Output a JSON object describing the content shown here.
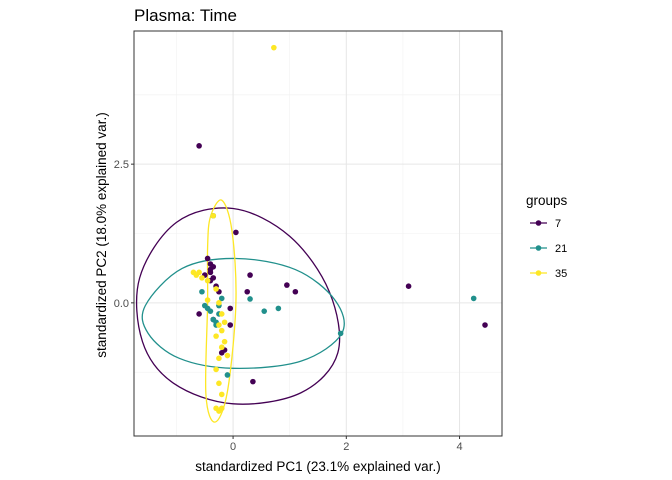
{
  "chart_data": {
    "type": "scatter",
    "title": "Plasma: Time",
    "xlabel": "standardized PC1 (23.1% explained var.)",
    "ylabel": "standardized PC2 (18.0% explained var.)",
    "xlim": [
      -1.75,
      4.75
    ],
    "ylim": [
      -2.4,
      4.9
    ],
    "x_ticks": [
      0,
      2,
      4
    ],
    "x_tick_labels": [
      "0",
      "2",
      "4"
    ],
    "y_ticks": [
      0,
      2.5
    ],
    "y_tick_labels": [
      "0.0",
      "2.5"
    ],
    "grid": true,
    "legend": {
      "title": "groups",
      "position": "right",
      "entries": [
        "7",
        "21",
        "35"
      ]
    },
    "series": [
      {
        "name": "7",
        "color": "#440154",
        "points": [
          [
            -0.6,
            2.83
          ],
          [
            0.05,
            1.27
          ],
          [
            -0.45,
            0.8
          ],
          [
            -0.4,
            0.7
          ],
          [
            -0.35,
            0.65
          ],
          [
            -0.4,
            0.6
          ],
          [
            -0.4,
            0.55
          ],
          [
            -0.5,
            0.5
          ],
          [
            -0.35,
            0.45
          ],
          [
            -0.4,
            0.4
          ],
          [
            -0.25,
            0.2
          ],
          [
            -0.3,
            0.3
          ],
          [
            0.3,
            0.5
          ],
          [
            0.25,
            0.2
          ],
          [
            0.95,
            0.32
          ],
          [
            1.1,
            0.2
          ],
          [
            -0.6,
            -0.2
          ],
          [
            -0.35,
            -0.3
          ],
          [
            -0.05,
            -0.4
          ],
          [
            -0.15,
            -0.85
          ],
          [
            -0.2,
            -0.9
          ],
          [
            0.35,
            -1.42
          ],
          [
            3.1,
            0.3
          ],
          [
            4.45,
            -0.4
          ],
          [
            -0.05,
            -0.1
          ]
        ]
      },
      {
        "name": "21",
        "color": "#21908c",
        "points": [
          [
            -0.35,
            1.57
          ],
          [
            -0.55,
            0.2
          ],
          [
            -0.5,
            -0.05
          ],
          [
            -0.45,
            -0.1
          ],
          [
            -0.4,
            -0.15
          ],
          [
            -0.35,
            -0.3
          ],
          [
            -0.3,
            -0.4
          ],
          [
            -0.25,
            -0.05
          ],
          [
            -0.2,
            0.08
          ],
          [
            0.3,
            0.07
          ],
          [
            0.55,
            -0.15
          ],
          [
            0.8,
            -0.1
          ],
          [
            1.9,
            -0.55
          ],
          [
            4.25,
            0.08
          ],
          [
            -0.1,
            -1.3
          ],
          [
            -0.25,
            -0.2
          ],
          [
            -0.3,
            -0.35
          ]
        ]
      },
      {
        "name": "35",
        "color": "#fde725",
        "points": [
          [
            0.72,
            4.6
          ],
          [
            -0.35,
            1.57
          ],
          [
            -0.7,
            0.55
          ],
          [
            -0.65,
            0.5
          ],
          [
            -0.6,
            0.55
          ],
          [
            -0.55,
            0.45
          ],
          [
            -0.45,
            0.4
          ],
          [
            -0.3,
            0.25
          ],
          [
            -0.25,
            0.0
          ],
          [
            -0.2,
            -0.2
          ],
          [
            -0.25,
            -0.4
          ],
          [
            -0.2,
            -0.5
          ],
          [
            -0.3,
            -0.6
          ],
          [
            -0.15,
            -0.7
          ],
          [
            -0.2,
            -0.8
          ],
          [
            -0.25,
            -1.0
          ],
          [
            -0.3,
            -1.2
          ],
          [
            -0.25,
            -1.45
          ],
          [
            -0.2,
            -1.65
          ],
          [
            -0.3,
            -1.9
          ],
          [
            -0.2,
            -1.9
          ],
          [
            -0.25,
            -1.95
          ],
          [
            -0.15,
            -0.35
          ],
          [
            -0.45,
            0.05
          ],
          [
            -0.1,
            -0.95
          ]
        ]
      }
    ],
    "ellipses": [
      {
        "series": "7",
        "color": "#440154",
        "points": [
          [
            -1.65,
            0.45
          ],
          [
            -1.0,
            1.45
          ],
          [
            0.0,
            1.7
          ],
          [
            1.0,
            1.2
          ],
          [
            1.7,
            0.2
          ],
          [
            1.85,
            -0.9
          ],
          [
            1.2,
            -1.62
          ],
          [
            0.0,
            -1.82
          ],
          [
            -1.05,
            -1.45
          ],
          [
            -1.6,
            -0.7
          ]
        ]
      },
      {
        "series": "21",
        "color": "#21908c",
        "points": [
          [
            -1.55,
            -0.05
          ],
          [
            -0.9,
            0.62
          ],
          [
            0.05,
            0.8
          ],
          [
            1.1,
            0.6
          ],
          [
            1.8,
            0.05
          ],
          [
            1.92,
            -0.55
          ],
          [
            1.2,
            -1.05
          ],
          [
            0.0,
            -1.18
          ],
          [
            -0.95,
            -1.0
          ],
          [
            -1.5,
            -0.55
          ]
        ]
      },
      {
        "series": "35",
        "color": "#fde725",
        "points": [
          [
            -0.4,
            1.55
          ],
          [
            -0.2,
            1.85
          ],
          [
            -0.02,
            1.3
          ],
          [
            0.05,
            0.0
          ],
          [
            -0.1,
            -1.6
          ],
          [
            -0.32,
            -2.15
          ],
          [
            -0.48,
            -1.65
          ],
          [
            -0.45,
            0.0
          ],
          [
            -0.45,
            1.0
          ]
        ]
      }
    ]
  }
}
